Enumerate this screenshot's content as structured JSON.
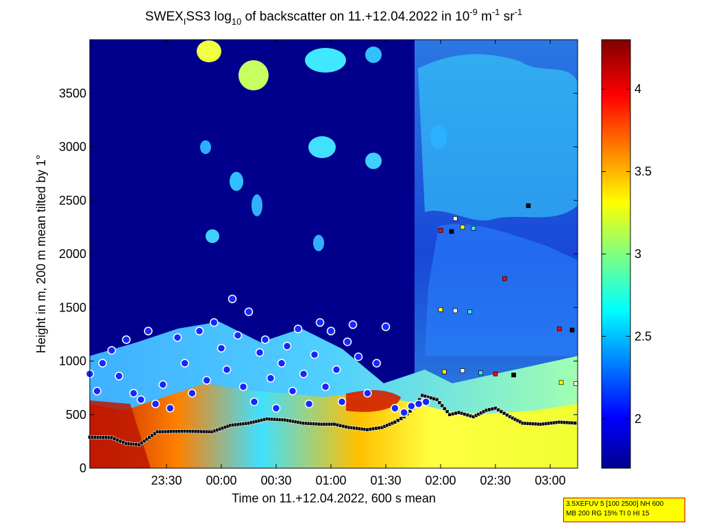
{
  "chart_data": {
    "type": "heatmap",
    "title": {
      "prefix": "SWEX",
      "prefix_sub": "I",
      "middle": "SS3 log",
      "middle_sub": "10",
      "rest": " of backscatter on 11.+12.04.2022 in 10",
      "exp1": "-9",
      "unit1": " m",
      "exp2": "-1",
      "unit2": " sr",
      "exp3": "-1"
    },
    "xlabel": "Time on 11.+12.04.2022, 600 s mean",
    "ylabel": "Height in m, 200 m mean tilted by 1°",
    "x_ticks": [
      "23:30",
      "00:00",
      "00:30",
      "01:00",
      "01:30",
      "02:00",
      "02:30",
      "03:00"
    ],
    "x_tick_minutes": [
      -30,
      0,
      30,
      60,
      90,
      120,
      150,
      180
    ],
    "xlim_minutes": [
      -72,
      195
    ],
    "y_ticks": [
      "0",
      "500",
      "1000",
      "1500",
      "2000",
      "2500",
      "3000",
      "3500"
    ],
    "y_tick_values": [
      0,
      500,
      1000,
      1500,
      2000,
      2500,
      3000,
      3500
    ],
    "ylim": [
      0,
      4000
    ],
    "colorbar": {
      "ticks": [
        "2",
        "2.5",
        "3",
        "3.5",
        "4"
      ],
      "tick_values": [
        2,
        2.5,
        3,
        3.5,
        4
      ],
      "range": [
        1.7,
        4.3
      ],
      "colormap": "jet"
    },
    "mixing_layer_black": [
      [
        -72,
        290
      ],
      [
        -60,
        285
      ],
      [
        -52,
        230
      ],
      [
        -45,
        220
      ],
      [
        -35,
        340
      ],
      [
        -20,
        345
      ],
      [
        -5,
        340
      ],
      [
        5,
        400
      ],
      [
        15,
        420
      ],
      [
        25,
        460
      ],
      [
        35,
        450
      ],
      [
        45,
        420
      ],
      [
        55,
        410
      ],
      [
        62,
        410
      ],
      [
        70,
        380
      ],
      [
        80,
        360
      ],
      [
        88,
        380
      ],
      [
        95,
        430
      ],
      [
        100,
        480
      ],
      [
        105,
        560
      ],
      [
        110,
        680
      ],
      [
        118,
        640
      ],
      [
        125,
        500
      ],
      [
        130,
        520
      ],
      [
        138,
        480
      ],
      [
        145,
        540
      ],
      [
        150,
        560
      ],
      [
        158,
        480
      ],
      [
        165,
        420
      ],
      [
        175,
        410
      ],
      [
        185,
        430
      ],
      [
        195,
        420
      ]
    ],
    "cloud_base_circles": [
      [
        -72,
        880
      ],
      [
        -68,
        720
      ],
      [
        -65,
        980
      ],
      [
        -60,
        1100
      ],
      [
        -56,
        860
      ],
      [
        -52,
        1200
      ],
      [
        -48,
        700
      ],
      [
        -44,
        640
      ],
      [
        -40,
        1280
      ],
      [
        -36,
        600
      ],
      [
        -32,
        780
      ],
      [
        -28,
        560
      ],
      [
        -24,
        1220
      ],
      [
        -20,
        980
      ],
      [
        -16,
        700
      ],
      [
        -12,
        1280
      ],
      [
        -8,
        820
      ],
      [
        -4,
        1360
      ],
      [
        0,
        1120
      ],
      [
        3,
        920
      ],
      [
        6,
        1580
      ],
      [
        9,
        1240
      ],
      [
        12,
        760
      ],
      [
        15,
        1460
      ],
      [
        18,
        620
      ],
      [
        21,
        1080
      ],
      [
        24,
        1200
      ],
      [
        27,
        840
      ],
      [
        30,
        560
      ],
      [
        33,
        980
      ],
      [
        36,
        1140
      ],
      [
        39,
        720
      ],
      [
        42,
        1300
      ],
      [
        45,
        880
      ],
      [
        48,
        600
      ],
      [
        51,
        1060
      ],
      [
        54,
        1360
      ],
      [
        57,
        760
      ],
      [
        60,
        1280
      ],
      [
        63,
        920
      ],
      [
        66,
        620
      ],
      [
        69,
        1180
      ],
      [
        72,
        1340
      ],
      [
        75,
        1040
      ],
      [
        80,
        700
      ],
      [
        85,
        980
      ],
      [
        90,
        1320
      ],
      [
        95,
        560
      ],
      [
        100,
        520
      ],
      [
        104,
        580
      ],
      [
        108,
        600
      ],
      [
        112,
        620
      ]
    ],
    "squares_upper": [
      [
        120,
        2220
      ],
      [
        126,
        2210
      ],
      [
        132,
        2250
      ],
      [
        128,
        2330
      ],
      [
        138,
        2240
      ],
      [
        155,
        1770
      ],
      [
        168,
        2450
      ],
      [
        120,
        1480
      ],
      [
        128,
        1470
      ],
      [
        136,
        1460
      ],
      [
        185,
        1300
      ],
      [
        192,
        1290
      ],
      [
        122,
        900
      ],
      [
        132,
        910
      ],
      [
        142,
        890
      ],
      [
        150,
        880
      ],
      [
        160,
        870
      ],
      [
        186,
        800
      ],
      [
        194,
        790
      ]
    ]
  },
  "info_box": {
    "line1": "3.5XEFUV 5 [100 2500] NH 600",
    "line2": "MB 200 RG 15% TI 0 HI 15"
  }
}
